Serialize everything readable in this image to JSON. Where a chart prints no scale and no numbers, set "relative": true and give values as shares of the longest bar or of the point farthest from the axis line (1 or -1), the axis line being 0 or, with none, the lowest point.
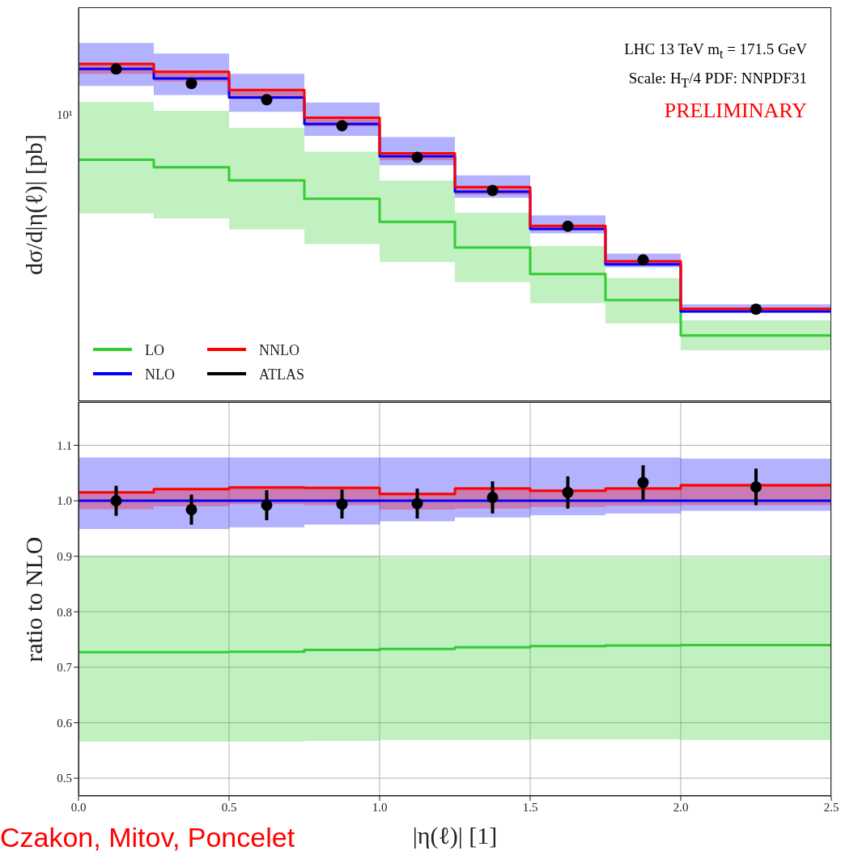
{
  "chart_data": [
    {
      "type": "step",
      "ylabel": "dσ/d|η(ℓ)| [pb]",
      "annotations": [
        "LHC 13 TeV m$_{t}$ = 171.5 GeV",
        "Scale: H$_{T}$/4 PDF: NNPDF31",
        "PRELIMINARY",
        "10¹"
      ],
      "relative": true,
      "x": [
        0,
        0.25,
        0.5,
        0.75,
        1.0,
        1.25,
        1.5,
        1.75,
        2.0,
        2.5
      ],
      "series": [
        {
          "name": "LO",
          "color": "#33cc33",
          "values": [
            0.716,
            0.694,
            0.655,
            0.6,
            0.532,
            0.456,
            0.377,
            0.3,
            0.195,
            0.195
          ],
          "lower": [
            0.557,
            0.542,
            0.51,
            0.466,
            0.413,
            0.353,
            0.291,
            0.231,
            0.151,
            0.151
          ],
          "upper": [
            0.887,
            0.861,
            0.811,
            0.74,
            0.654,
            0.559,
            0.46,
            0.365,
            0.24,
            0.24
          ]
        },
        {
          "name": "NLO",
          "color": "#0000ff",
          "values": [
            0.985,
            0.957,
            0.901,
            0.822,
            0.726,
            0.621,
            0.511,
            0.406,
            0.266,
            0.266
          ],
          "lower": [
            0.935,
            0.908,
            0.858,
            0.787,
            0.7,
            0.603,
            0.498,
            0.397,
            0.262,
            0.262
          ],
          "upper": [
            1.062,
            1.031,
            0.971,
            0.886,
            0.783,
            0.67,
            0.551,
            0.438,
            0.287,
            0.287
          ]
        },
        {
          "name": "NNLO",
          "color": "#ff0000",
          "values": [
            1.0,
            0.977,
            0.923,
            0.841,
            0.735,
            0.635,
            0.52,
            0.415,
            0.274,
            0.274
          ],
          "lower": [
            0.971,
            0.948,
            0.896,
            0.815,
            0.715,
            0.613,
            0.506,
            0.402,
            0.264,
            0.264
          ],
          "upper": [
            1.003,
            0.98,
            0.926,
            0.843,
            0.737,
            0.637,
            0.522,
            0.416,
            0.274,
            0.274
          ]
        },
        {
          "name": "ATLAS",
          "type": "scatter",
          "marker": "circle",
          "color": "#000000",
          "x": [
            0.125,
            0.375,
            0.625,
            0.875,
            1.125,
            1.375,
            1.625,
            1.875,
            2.25
          ],
          "values": [
            0.985,
            0.942,
            0.894,
            0.817,
            0.723,
            0.625,
            0.519,
            0.419,
            0.273
          ]
        }
      ],
      "xlim": [
        0,
        2.5
      ],
      "xticks": [
        0,
        0.5,
        1.0,
        1.5,
        2.0,
        2.5
      ],
      "tick_labels": false,
      "grid": "x",
      "legend": "bottom left"
    },
    {
      "type": "step",
      "xlabel": "|η(ℓ)| [1]",
      "ylabel": "ratio to NLO",
      "annotations": [
        "Czakon, Mitov, Poncelet"
      ],
      "x": [
        0,
        0.25,
        0.5,
        0.75,
        1.0,
        1.25,
        1.5,
        1.75,
        2.0,
        2.5
      ],
      "series": [
        {
          "color": "#33cc33",
          "values": [
            0.727,
            0.727,
            0.728,
            0.731,
            0.733,
            0.736,
            0.738,
            0.739,
            0.74,
            0.74
          ],
          "lower": [
            0.566,
            0.566,
            0.566,
            0.567,
            0.569,
            0.569,
            0.57,
            0.57,
            0.569,
            0.569
          ],
          "upper": [
            0.9,
            0.9,
            0.9,
            0.9,
            0.898,
            0.898,
            0.898,
            0.898,
            0.898,
            0.898
          ]
        },
        {
          "color": "#0000ff",
          "values": [
            1.0,
            1.0,
            1.0,
            1.0,
            1.0,
            1.0,
            1.0,
            1.0,
            1.0,
            1.0
          ],
          "lower": [
            0.949,
            0.949,
            0.952,
            0.957,
            0.963,
            0.97,
            0.974,
            0.977,
            0.982,
            0.982
          ],
          "upper": [
            1.078,
            1.078,
            1.078,
            1.078,
            1.078,
            1.078,
            1.078,
            1.078,
            1.076,
            1.076
          ]
        },
        {
          "color": "#ff0000",
          "values": [
            1.015,
            1.021,
            1.024,
            1.023,
            1.012,
            1.022,
            1.018,
            1.022,
            1.028,
            1.028
          ],
          "lower": [
            0.985,
            0.99,
            0.994,
            0.992,
            0.984,
            0.986,
            0.989,
            0.991,
            0.992,
            0.992
          ],
          "upper": [
            1.018,
            1.024,
            1.027,
            1.026,
            1.015,
            1.025,
            1.021,
            1.025,
            1.031,
            1.031
          ]
        },
        {
          "type": "scatter",
          "marker": "circle",
          "color": "#000000",
          "x": [
            0.125,
            0.375,
            0.625,
            0.875,
            1.125,
            1.375,
            1.625,
            1.875,
            2.25
          ],
          "values": [
            1.0,
            0.984,
            0.992,
            0.994,
            0.995,
            1.006,
            1.015,
            1.033,
            1.025
          ],
          "errors": [
            0.027,
            0.027,
            0.027,
            0.026,
            0.027,
            0.029,
            0.029,
            0.031,
            0.033
          ]
        }
      ],
      "xlim": [
        0,
        2.5
      ],
      "xticks": [
        {
          "value": 0,
          "label": "0.0"
        },
        0.5,
        {
          "value": 1.0,
          "label": "1.0"
        },
        1.5,
        {
          "value": 2.0,
          "label": "2.0"
        },
        2.5
      ],
      "ylim": [
        0.468,
        1.178
      ],
      "yticks": [
        0.5,
        0.6,
        0.7,
        0.8,
        0.9,
        {
          "value": 1.0,
          "label": "1.0"
        },
        1.1
      ],
      "grid": true
    }
  ]
}
